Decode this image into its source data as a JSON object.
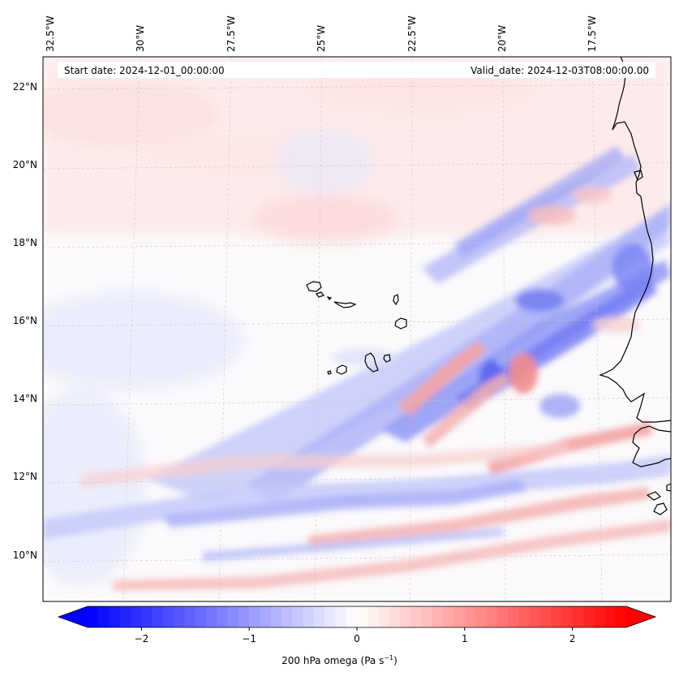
{
  "annotations": {
    "start_date": "Start date: 2024-12-01_00:00:00",
    "valid_date": "Valid_date: 2024-12-03T08:00:00.00"
  },
  "lon_labels": [
    "32.5°W",
    "30°W",
    "27.5°W",
    "25°W",
    "22.5°W",
    "20°W",
    "17.5°W"
  ],
  "lat_labels": [
    "22°N",
    "20°N",
    "18°N",
    "16°N",
    "14°N",
    "12°N",
    "10°N"
  ],
  "colorbar": {
    "ticks": [
      "−2",
      "−1",
      "0",
      "1",
      "2"
    ],
    "tick_values": [
      -2,
      -1,
      0,
      1,
      2
    ],
    "vmin": -2.5,
    "vmax": 2.5,
    "label_main": "200 hPa omega (Pa s",
    "label_exp": "−1",
    "label_close": ")",
    "colormap": "bwr",
    "color_min": "#0000ff",
    "color_mid": "#ffffff",
    "color_max": "#ff0000"
  },
  "map": {
    "field": "200 hPa omega",
    "coastline_color": "#000000",
    "gridline_color": "#c8c8c8"
  }
}
